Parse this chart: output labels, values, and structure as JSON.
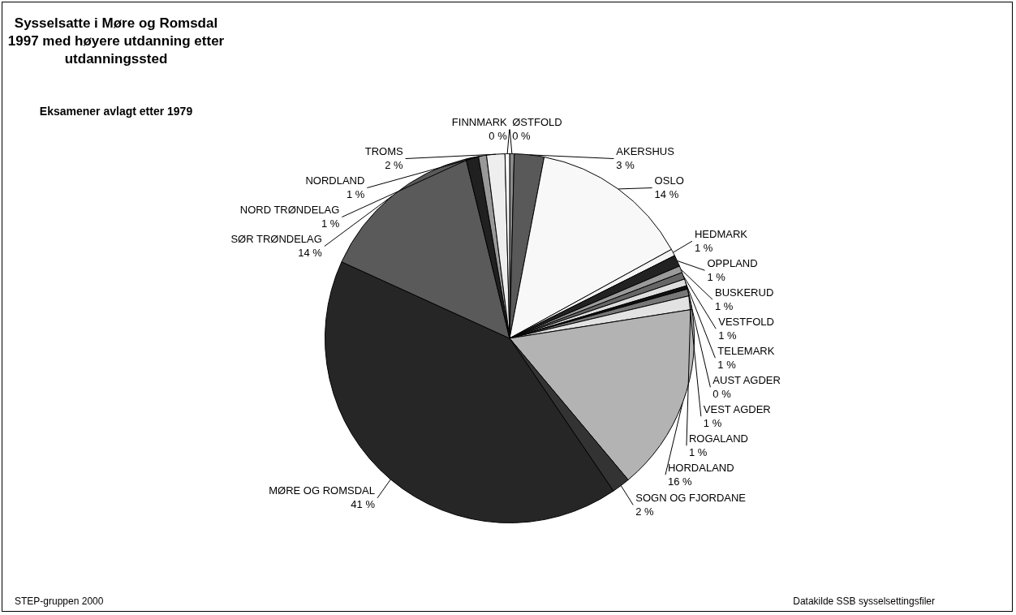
{
  "chart_data": {
    "type": "pie",
    "title": "Sysselsatte i Møre og Romsdal 1997 med høyere utdanning etter utdanningssted",
    "subtitle": "Eksamener avlagt etter 1979",
    "categories": [
      "ØSTFOLD",
      "AKERSHUS",
      "OSLO",
      "HEDMARK",
      "OPPLAND",
      "BUSKERUD",
      "VESTFOLD",
      "TELEMARK",
      "AUST AGDER",
      "VEST AGDER",
      "ROGALAND",
      "HORDALAND",
      "SOGN OG FJORDANE",
      "MØRE OG ROMSDAL",
      "SØR TRØNDELAG",
      "NORD TRØNDELAG",
      "NORDLAND",
      "TROMS",
      "FINNMARK"
    ],
    "values": [
      0.4,
      2.6,
      14.0,
      0.6,
      1.0,
      0.6,
      0.6,
      0.6,
      0.3,
      0.6,
      1.2,
      16.4,
      1.6,
      41.3,
      14.4,
      1.1,
      0.7,
      1.6,
      0.4
    ],
    "value_labels": [
      "0 %",
      "3 %",
      "14 %",
      "1 %",
      "1 %",
      "1 %",
      "1 %",
      "1 %",
      "0 %",
      "1 %",
      "1 %",
      "16 %",
      "2 %",
      "41 %",
      "14 %",
      "1 %",
      "1 %",
      "2 %",
      "0 %"
    ],
    "colors": [
      "#8c8c8c",
      "#595959",
      "#f8f8f8",
      "#f4f4f4",
      "#222222",
      "#9a9a9a",
      "#666666",
      "#dddddd",
      "#111111",
      "#777777",
      "#e2e2e2",
      "#b3b3b3",
      "#333333",
      "#262626",
      "#5a5a5a",
      "#202020",
      "#999999",
      "#eeeeee",
      "#fafafa"
    ],
    "legend": false,
    "annotations": [
      "STEP-gruppen 2000",
      "Datakilde SSB sysselsettingsfiler"
    ]
  }
}
